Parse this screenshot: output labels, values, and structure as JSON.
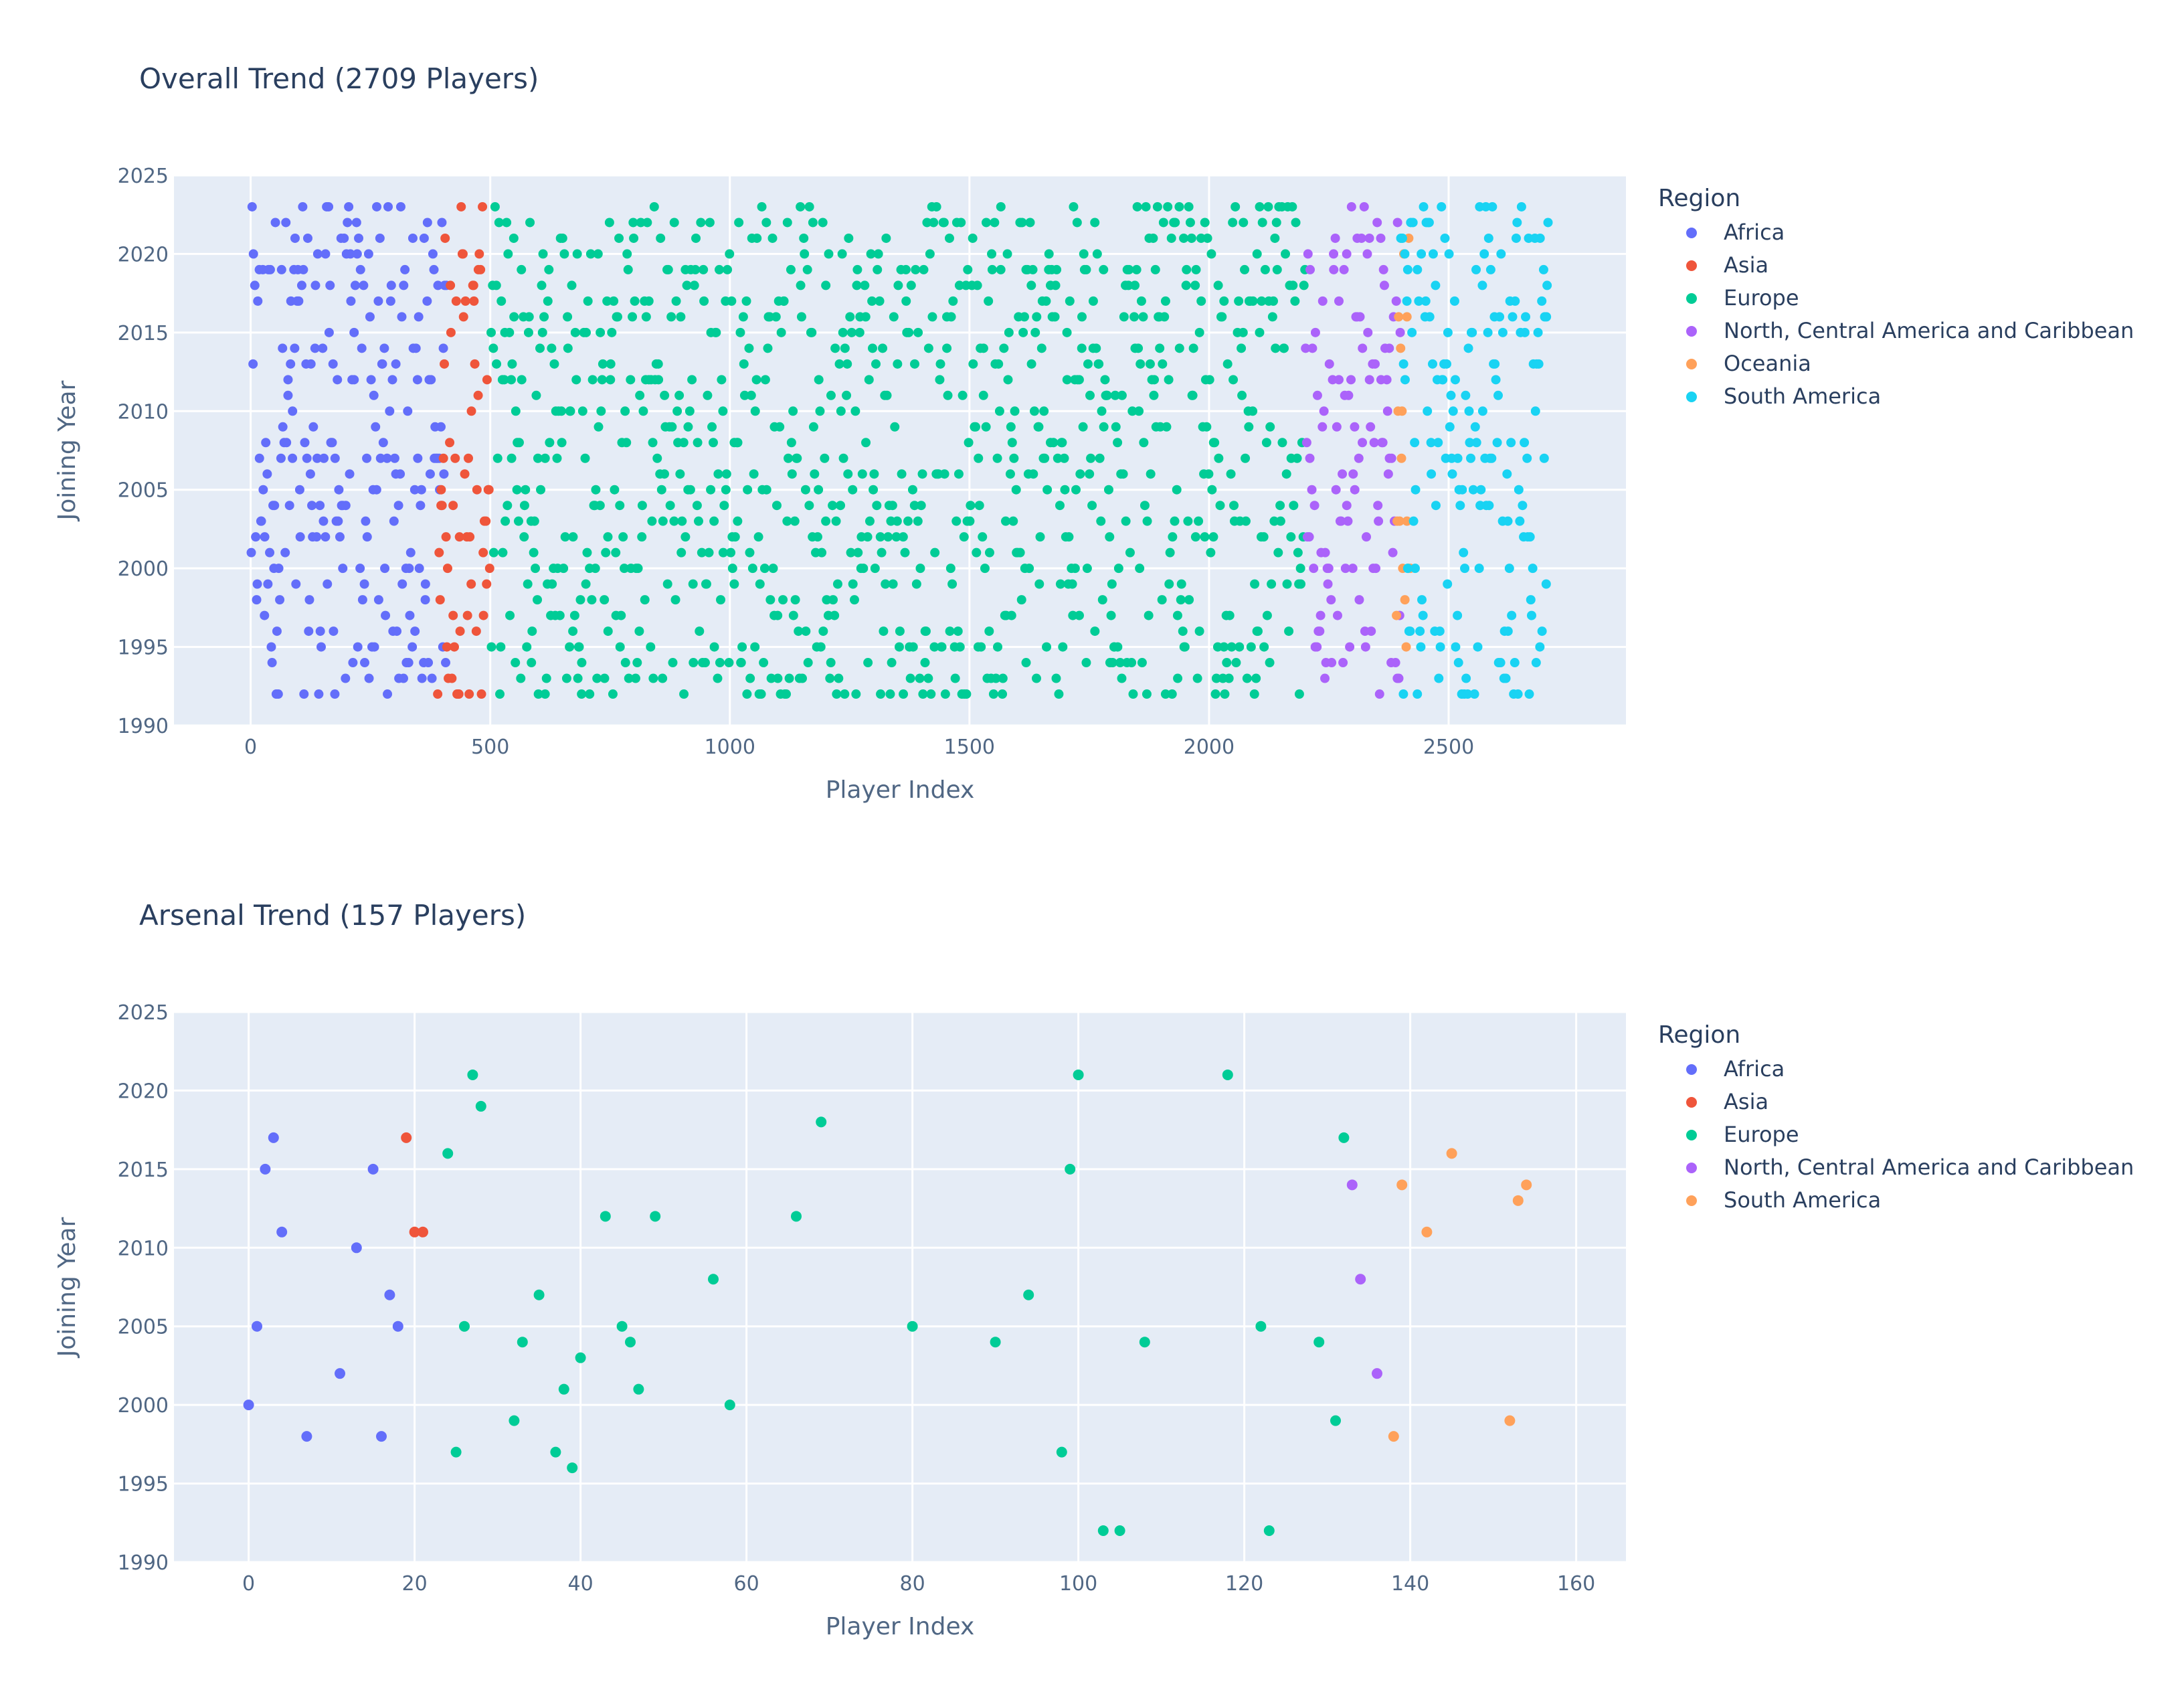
{
  "chart_data": [
    {
      "type": "scatter",
      "title": "Overall Trend (2709 Players)",
      "xlabel": "Player Index",
      "ylabel": "Joining Year",
      "xlim": [
        -160,
        2870
      ],
      "ylim": [
        1990,
        2025
      ],
      "xticks": [
        0,
        500,
        1000,
        1500,
        2000,
        2500
      ],
      "yticks": [
        1990,
        1995,
        2000,
        2005,
        2010,
        2015,
        2020,
        2025
      ],
      "grid": true,
      "legend_title": "Region",
      "legend_position": "right",
      "series": [
        {
          "name": "Africa",
          "color": "#636efa",
          "x_range": [
            0,
            410
          ]
        },
        {
          "name": "Asia",
          "color": "#ef553b",
          "x_range": [
            390,
            500
          ]
        },
        {
          "name": "Europe",
          "color": "#00cc96",
          "x_range": [
            500,
            2200
          ]
        },
        {
          "name": "North, Central America and Caribbean",
          "color": "#ab63fa",
          "x_range": [
            2200,
            2400
          ]
        },
        {
          "name": "Oceania",
          "color": "#ffa15a",
          "x_range": [
            2390,
            2420
          ]
        },
        {
          "name": "South America",
          "color": "#19d3f3",
          "x_range": [
            2400,
            2709
          ]
        }
      ],
      "note_points": "dense per-player points, one per player index; joining years 1992-2023"
    },
    {
      "type": "scatter",
      "title": "Arsenal Trend (157 Players)",
      "xlabel": "Player Index",
      "ylabel": "Joining Year",
      "xlim": [
        -9,
        166
      ],
      "ylim": [
        1990,
        2025
      ],
      "xticks": [
        0,
        20,
        40,
        60,
        80,
        100,
        120,
        140,
        160
      ],
      "yticks": [
        1990,
        1995,
        2000,
        2005,
        2010,
        2015,
        2020,
        2025
      ],
      "grid": true,
      "legend_title": "Region",
      "legend_position": "right",
      "series": [
        {
          "name": "Africa",
          "color": "#636efa",
          "points": [
            [
              0,
              2000
            ],
            [
              1,
              2005
            ],
            [
              2,
              2015
            ],
            [
              3,
              2017
            ],
            [
              4,
              2011
            ],
            [
              7,
              1998
            ],
            [
              11,
              2002
            ],
            [
              13,
              2010
            ],
            [
              15,
              2015
            ],
            [
              16,
              1998
            ],
            [
              17,
              2007
            ],
            [
              18,
              2005
            ]
          ]
        },
        {
          "name": "Asia",
          "color": "#ef553b",
          "points": [
            [
              19,
              2017
            ],
            [
              20,
              2011
            ],
            [
              21,
              2011
            ]
          ]
        },
        {
          "name": "Europe",
          "color": "#00cc96",
          "points": [
            [
              24,
              2016
            ],
            [
              25,
              1997
            ],
            [
              26,
              2005
            ],
            [
              27,
              2021
            ],
            [
              28,
              2019
            ],
            [
              32,
              1999
            ],
            [
              33,
              2004
            ],
            [
              35,
              2007
            ],
            [
              37,
              1997
            ],
            [
              38,
              2001
            ],
            [
              39,
              1996
            ],
            [
              40,
              2003
            ],
            [
              43,
              2012
            ],
            [
              45,
              2005
            ],
            [
              46,
              2004
            ],
            [
              47,
              2001
            ],
            [
              49,
              2012
            ],
            [
              56,
              2008
            ],
            [
              58,
              2000
            ],
            [
              66,
              2012
            ],
            [
              69,
              2018
            ],
            [
              80,
              2005
            ],
            [
              90,
              2004
            ],
            [
              94,
              2007
            ],
            [
              98,
              1997
            ],
            [
              99,
              2015
            ],
            [
              100,
              2021
            ],
            [
              103,
              1992
            ],
            [
              105,
              1992
            ],
            [
              108,
              2004
            ],
            [
              118,
              2021
            ],
            [
              122,
              2005
            ],
            [
              123,
              1992
            ],
            [
              129,
              2004
            ],
            [
              131,
              1999
            ],
            [
              132,
              2017
            ]
          ]
        },
        {
          "name": "North, Central America and Caribbean",
          "color": "#ab63fa",
          "points": [
            [
              133,
              2014
            ],
            [
              134,
              2008
            ],
            [
              136,
              2002
            ]
          ]
        },
        {
          "name": "South America",
          "color": "#ffa15a",
          "points": [
            [
              138,
              1998
            ],
            [
              139,
              2014
            ],
            [
              142,
              2011
            ],
            [
              145,
              2016
            ],
            [
              152,
              1999
            ],
            [
              153,
              2013
            ],
            [
              154,
              2014
            ]
          ]
        }
      ]
    }
  ]
}
